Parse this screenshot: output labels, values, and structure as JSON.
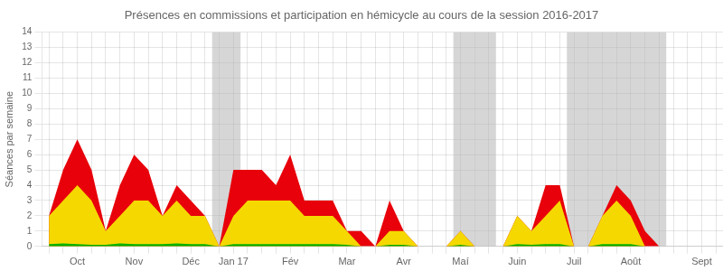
{
  "chart_data": {
    "type": "area",
    "title": "Présences en commissions et participation en hémicycle au cours de la session 2016-2017",
    "y_label": "Séances par semaine",
    "categories": [
      null,
      null,
      "Oct",
      null,
      null,
      null,
      "Nov",
      null,
      null,
      null,
      "Déc",
      null,
      null,
      "Jan 17",
      null,
      null,
      null,
      "Fév",
      null,
      null,
      null,
      "Mar",
      null,
      null,
      null,
      "Avr",
      null,
      null,
      null,
      "Maí",
      null,
      null,
      null,
      "Juin",
      null,
      null,
      null,
      "Juil",
      null,
      null,
      null,
      "Août",
      null,
      null,
      null,
      null,
      "Sept",
      null
    ],
    "series": [
      {
        "color": "#e8000a",
        "values": [
          2,
          5,
          7,
          5,
          1,
          4,
          6,
          5,
          2,
          4,
          3,
          2,
          0,
          5,
          5,
          5,
          4,
          6,
          3,
          3,
          3,
          1,
          1,
          0,
          3,
          1,
          0,
          0,
          0,
          1,
          0,
          0,
          0,
          2,
          1,
          4,
          4,
          0,
          0,
          2,
          4,
          3,
          1,
          0,
          0,
          0,
          0,
          0
        ]
      },
      {
        "color": "#f5d800",
        "values": [
          2,
          3,
          4,
          3,
          1,
          2,
          3,
          3,
          2,
          3,
          2,
          2,
          0,
          2,
          3,
          3,
          3,
          3,
          2,
          2,
          2,
          1,
          0,
          0,
          1,
          1,
          0,
          0,
          0,
          1,
          0,
          0,
          0,
          2,
          1,
          2,
          3,
          0,
          0,
          2,
          3,
          2,
          0,
          0,
          0,
          0,
          0,
          0
        ]
      },
      {
        "color": "#00b200",
        "values": [
          0.15,
          0.2,
          0.15,
          0.1,
          0.1,
          0.2,
          0.15,
          0.15,
          0.15,
          0.2,
          0.15,
          0.15,
          0,
          0.15,
          0.15,
          0.15,
          0.15,
          0.15,
          0.15,
          0.15,
          0.15,
          0.1,
          0,
          0,
          0.1,
          0.1,
          0,
          0,
          0,
          0.1,
          0,
          0,
          0,
          0.15,
          0.1,
          0.15,
          0.15,
          0,
          0,
          0.15,
          0.15,
          0.15,
          0,
          0,
          0,
          0,
          0,
          0
        ]
      }
    ],
    "shade_regions": [
      [
        11.5,
        13.5
      ],
      [
        28.5,
        30.0
      ],
      [
        30.0,
        31.5
      ],
      [
        36.5,
        43.5
      ]
    ],
    "shade_color": "#b4b4b4",
    "ylim": [
      0,
      14
    ],
    "yticks": [
      0,
      1,
      2,
      3,
      4,
      5,
      6,
      7,
      8,
      9,
      10,
      11,
      12,
      13,
      14
    ],
    "grid": true
  }
}
